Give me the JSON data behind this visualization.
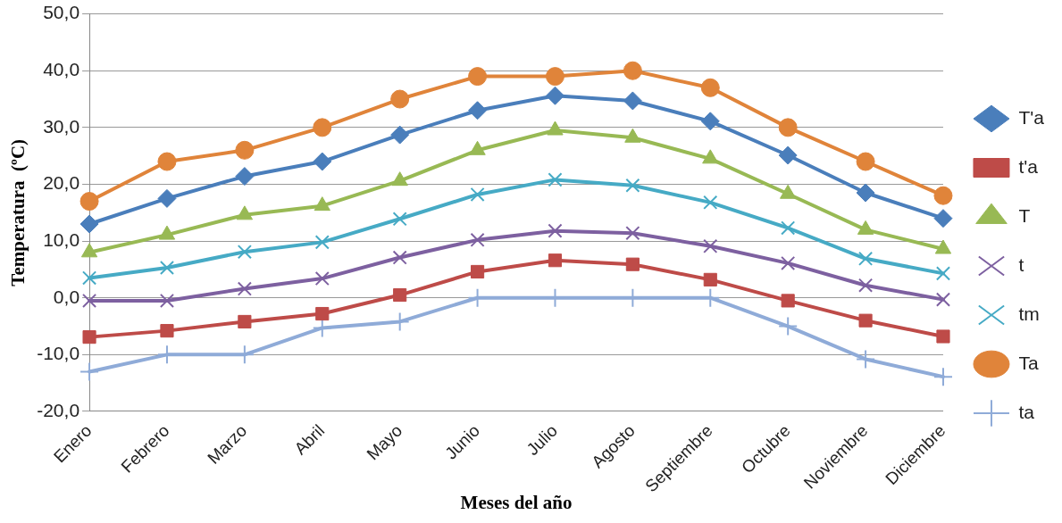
{
  "chart_data": {
    "type": "line",
    "xlabel": "Meses del año",
    "ylabel": "Temperatura  (ºC)",
    "categories": [
      "Enero",
      "Febrero",
      "Marzo",
      "Abril",
      "Mayo",
      "Junio",
      "Julio",
      "Agosto",
      "Septiembre",
      "Octubre",
      "Noviembre",
      "Diciembre"
    ],
    "series": [
      {
        "name": "T'a",
        "color": "#4a7ebb",
        "marker": "diamond",
        "values": [
          13,
          17.5,
          21.4,
          24,
          28.7,
          33,
          35.6,
          34.7,
          31.1,
          25.1,
          18.5,
          14
        ]
      },
      {
        "name": "t'a",
        "color": "#be4b48",
        "marker": "square",
        "values": [
          -6.9,
          -5.8,
          -4.2,
          -2.8,
          0.5,
          4.6,
          6.6,
          5.9,
          3.2,
          -0.5,
          -4,
          -6.8
        ]
      },
      {
        "name": "T",
        "color": "#98b954",
        "marker": "triangle",
        "values": [
          8,
          11.1,
          14.6,
          16.2,
          20.6,
          26,
          29.5,
          28.2,
          24.5,
          18.3,
          12,
          8.6
        ]
      },
      {
        "name": "t",
        "color": "#7d60a0",
        "marker": "cross",
        "values": [
          -0.5,
          -0.5,
          1.6,
          3.4,
          7.1,
          10.2,
          11.8,
          11.4,
          9.1,
          6.1,
          2.2,
          -0.3
        ]
      },
      {
        "name": "tm",
        "color": "#46aac5",
        "marker": "cross",
        "values": [
          3.5,
          5.3,
          8.1,
          9.8,
          13.9,
          18.2,
          20.8,
          19.8,
          16.8,
          12.3,
          6.9,
          4.3
        ]
      },
      {
        "name": "Ta",
        "color": "#e0843a",
        "marker": "circle",
        "values": [
          17,
          24,
          26,
          30,
          35,
          39,
          39,
          40,
          37,
          30,
          24,
          18
        ]
      },
      {
        "name": "ta",
        "color": "#8fabd8",
        "marker": "plus",
        "values": [
          -13,
          -10,
          -10,
          -5.3,
          -4.2,
          0,
          0,
          0,
          0,
          -5,
          -10.8,
          -13.9
        ]
      }
    ],
    "ylim": [
      -20,
      50
    ],
    "yticks": [
      {
        "value": -20,
        "label": "-20,0"
      },
      {
        "value": -10,
        "label": "-10,0"
      },
      {
        "value": 0,
        "label": "0,0"
      },
      {
        "value": 10,
        "label": "10,0"
      },
      {
        "value": 20,
        "label": "20,0"
      },
      {
        "value": 30,
        "label": "30,0"
      },
      {
        "value": 40,
        "label": "40,0"
      },
      {
        "value": 50,
        "label": "50,0"
      }
    ],
    "grid": "y",
    "legend": "right",
    "line_style": "solid"
  }
}
